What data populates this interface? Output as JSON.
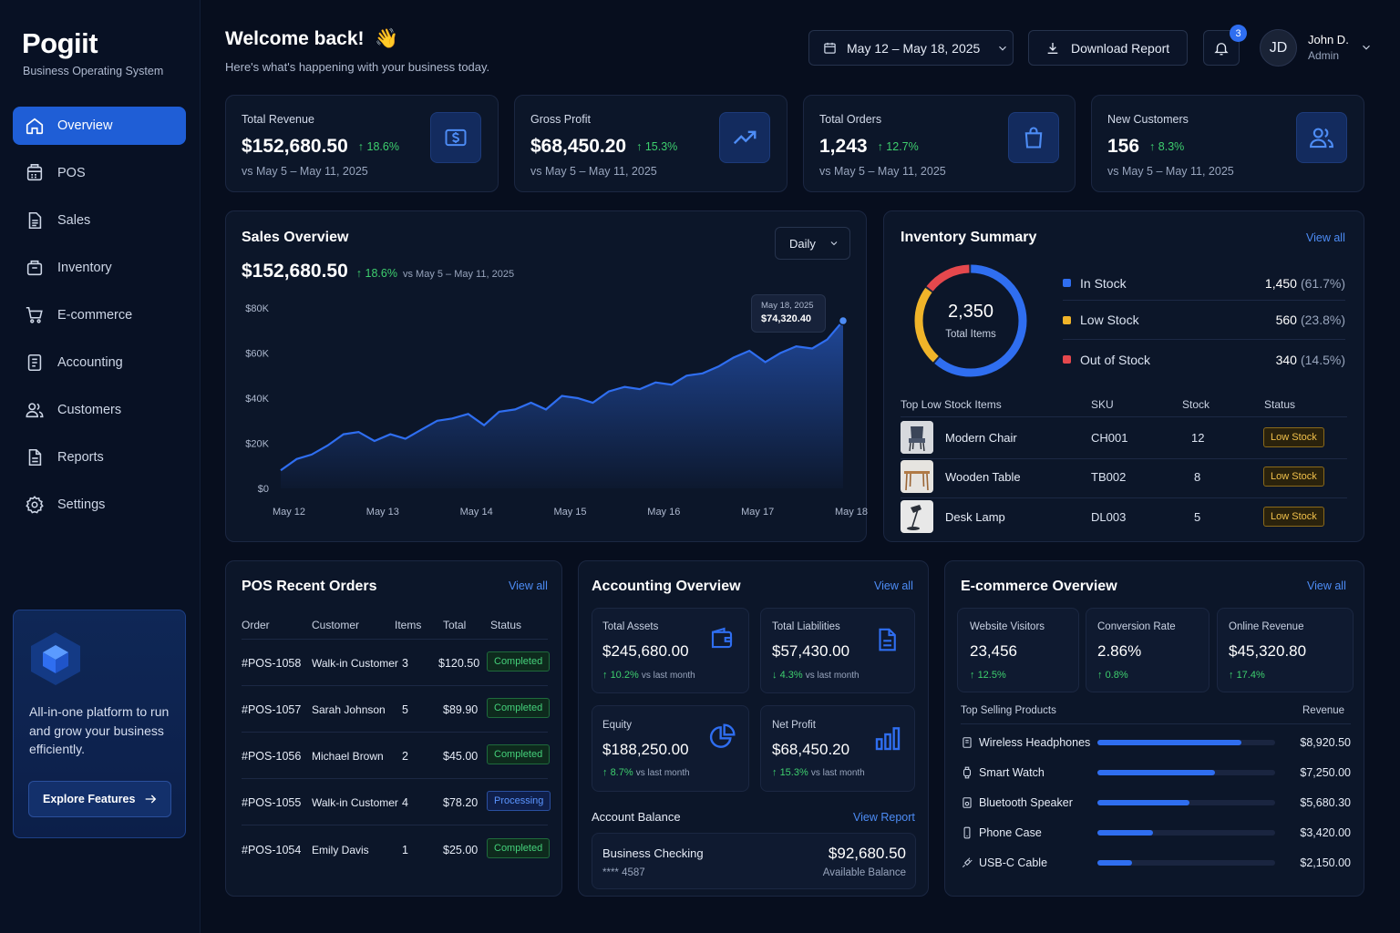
{
  "sidebar": {
    "brand": "Pogiit",
    "brand_sub": "Business Operating System",
    "items": [
      {
        "label": "Overview",
        "icon": "home-icon"
      },
      {
        "label": "POS",
        "icon": "pos-icon"
      },
      {
        "label": "Sales",
        "icon": "document-icon"
      },
      {
        "label": "Inventory",
        "icon": "box-icon"
      },
      {
        "label": "E-commerce",
        "icon": "cart-icon"
      },
      {
        "label": "Accounting",
        "icon": "ledger-icon"
      },
      {
        "label": "Customers",
        "icon": "users-icon"
      },
      {
        "label": "Reports",
        "icon": "report-icon"
      },
      {
        "label": "Settings",
        "icon": "gear-icon"
      }
    ],
    "promo_text": "All-in-one platform to run and grow your business efficiently.",
    "promo_button": "Explore Features"
  },
  "header": {
    "title": "Welcome back!",
    "emoji": "👋",
    "subtitle": "Here's what's happening with your business today.",
    "date_range": "May 12 – May 18, 2025",
    "download": "Download Report",
    "notifications": "3",
    "avatar": "JD",
    "user_name": "John D.",
    "user_role": "Admin"
  },
  "kpis": [
    {
      "label": "Total Revenue",
      "value": "$152,680.50",
      "change": "18.6%",
      "compare": "vs May 5 – May 11, 2025",
      "icon": "dollar-icon"
    },
    {
      "label": "Gross Profit",
      "value": "$68,450.20",
      "change": "15.3%",
      "compare": "vs May 5 – May 11, 2025",
      "icon": "trend-up-icon"
    },
    {
      "label": "Total Orders",
      "value": "1,243",
      "change": "12.7%",
      "compare": "vs May 5 – May 11, 2025",
      "icon": "bag-icon"
    },
    {
      "label": "New Customers",
      "value": "156",
      "change": "8.3%",
      "compare": "vs May 5 – May 11, 2025",
      "icon": "users-icon"
    }
  ],
  "sales_overview": {
    "title": "Sales Overview",
    "period": "Daily",
    "value": "$152,680.50",
    "change": "18.6%",
    "compare": "vs May 5 – May 11, 2025",
    "tooltip_date": "May 18, 2025",
    "tooltip_value": "$74,320.40"
  },
  "chart_data": {
    "type": "area",
    "title": "Sales Overview",
    "xlabel": "",
    "ylabel": "",
    "ylim": [
      0,
      80000
    ],
    "y_ticks": [
      "$0",
      "$20K",
      "$40K",
      "$60K",
      "$80K"
    ],
    "x_ticks": [
      "May 12",
      "May 13",
      "May 14",
      "May 15",
      "May 16",
      "May 17",
      "May 18"
    ],
    "grid": false,
    "color": "#2f6ef0",
    "series": [
      {
        "x": [
          0,
          0.17,
          0.33,
          0.5,
          0.67,
          0.83,
          1.0,
          1.17,
          1.33,
          1.5,
          1.67,
          1.83,
          2.0,
          2.17,
          2.33,
          2.5,
          2.67,
          2.83,
          3.0,
          3.17,
          3.33,
          3.5,
          3.67,
          3.83,
          4.0,
          4.17,
          4.33,
          4.5,
          4.67,
          4.83,
          5.0,
          5.17,
          5.33,
          5.5,
          5.67,
          5.83,
          6.0
        ],
        "values": [
          8000,
          13000,
          15000,
          19000,
          24000,
          25000,
          21000,
          24000,
          22000,
          26000,
          30000,
          31000,
          33000,
          28000,
          34000,
          35000,
          38000,
          35000,
          41000,
          40000,
          38000,
          43000,
          45000,
          44000,
          47000,
          46000,
          50000,
          51000,
          54000,
          58000,
          61000,
          56000,
          60000,
          63000,
          62000,
          66000,
          74320
        ]
      }
    ]
  },
  "inventory": {
    "title": "Inventory Summary",
    "view_all": "View all",
    "total": "2,350",
    "total_label": "Total Items",
    "segments": [
      {
        "label": "In Stock",
        "value": "1,450",
        "pct": "(61.7%)",
        "fraction": 0.617,
        "color": "#2f6ef0"
      },
      {
        "label": "Low Stock",
        "value": "560",
        "pct": "(23.8%)",
        "fraction": 0.238,
        "color": "#f0b429"
      },
      {
        "label": "Out of Stock",
        "value": "340",
        "pct": "(14.5%)",
        "fraction": 0.145,
        "color": "#e5484d"
      }
    ],
    "table_headers": [
      "Top Low Stock Items",
      "SKU",
      "Stock",
      "Status"
    ],
    "items": [
      {
        "name": "Modern Chair",
        "sku": "CH001",
        "stock": "12",
        "status": "Low Stock"
      },
      {
        "name": "Wooden Table",
        "sku": "TB002",
        "stock": "8",
        "status": "Low Stock"
      },
      {
        "name": "Desk Lamp",
        "sku": "DL003",
        "stock": "5",
        "status": "Low Stock"
      }
    ]
  },
  "pos": {
    "title": "POS Recent Orders",
    "view_all": "View all",
    "headers": [
      "Order",
      "Customer",
      "Items",
      "Total",
      "Status"
    ],
    "orders": [
      {
        "id": "#POS-1058",
        "customer": "Walk-in Customer",
        "items": "3",
        "total": "$120.50",
        "status": "Completed"
      },
      {
        "id": "#POS-1057",
        "customer": "Sarah Johnson",
        "items": "5",
        "total": "$89.90",
        "status": "Completed"
      },
      {
        "id": "#POS-1056",
        "customer": "Michael Brown",
        "items": "2",
        "total": "$45.00",
        "status": "Completed"
      },
      {
        "id": "#POS-1055",
        "customer": "Walk-in Customer",
        "items": "4",
        "total": "$78.20",
        "status": "Processing"
      },
      {
        "id": "#POS-1054",
        "customer": "Emily Davis",
        "items": "1",
        "total": "$25.00",
        "status": "Completed"
      }
    ]
  },
  "accounting": {
    "title": "Accounting Overview",
    "view_all": "View all",
    "cards": [
      {
        "label": "Total Assets",
        "value": "$245,680.00",
        "change": "10.2%",
        "dir": "up",
        "note": "vs last month",
        "icon": "wallet-icon"
      },
      {
        "label": "Total Liabilities",
        "value": "$57,430.00",
        "change": "4.3%",
        "dir": "down",
        "note": "vs last month",
        "icon": "invoice-icon"
      },
      {
        "label": "Equity",
        "value": "$188,250.00",
        "change": "8.7%",
        "dir": "up",
        "note": "vs last month",
        "icon": "pie-icon"
      },
      {
        "label": "Net Profit",
        "value": "$68,450.20",
        "change": "15.3%",
        "dir": "up",
        "note": "vs last month",
        "icon": "bar-chart-icon"
      }
    ],
    "balance_title": "Account Balance",
    "view_report": "View Report",
    "account_name": "Business Checking",
    "account_number": "**** 4587",
    "balance": "$92,680.50",
    "balance_label": "Available Balance"
  },
  "ecommerce": {
    "title": "E-commerce Overview",
    "view_all": "View all",
    "stats": [
      {
        "label": "Website Visitors",
        "value": "23,456",
        "change": "12.5%"
      },
      {
        "label": "Conversion Rate",
        "value": "2.86%",
        "change": "0.8%"
      },
      {
        "label": "Online Revenue",
        "value": "$45,320.80",
        "change": "17.4%"
      }
    ],
    "top_label": "Top Selling Products",
    "revenue_label": "Revenue",
    "products": [
      {
        "name": "Wireless Headphones",
        "revenue": "$8,920.50",
        "amount": 8920.5,
        "icon": "headphones-icon"
      },
      {
        "name": "Smart Watch",
        "revenue": "$7,250.00",
        "amount": 7250.0,
        "icon": "watch-icon"
      },
      {
        "name": "Bluetooth Speaker",
        "revenue": "$5,680.30",
        "amount": 5680.3,
        "icon": "speaker-icon"
      },
      {
        "name": "Phone Case",
        "revenue": "$3,420.00",
        "amount": 3420.0,
        "icon": "phone-icon"
      },
      {
        "name": "USB-C Cable",
        "revenue": "$2,150.00",
        "amount": 2150.0,
        "icon": "cable-icon"
      }
    ]
  }
}
